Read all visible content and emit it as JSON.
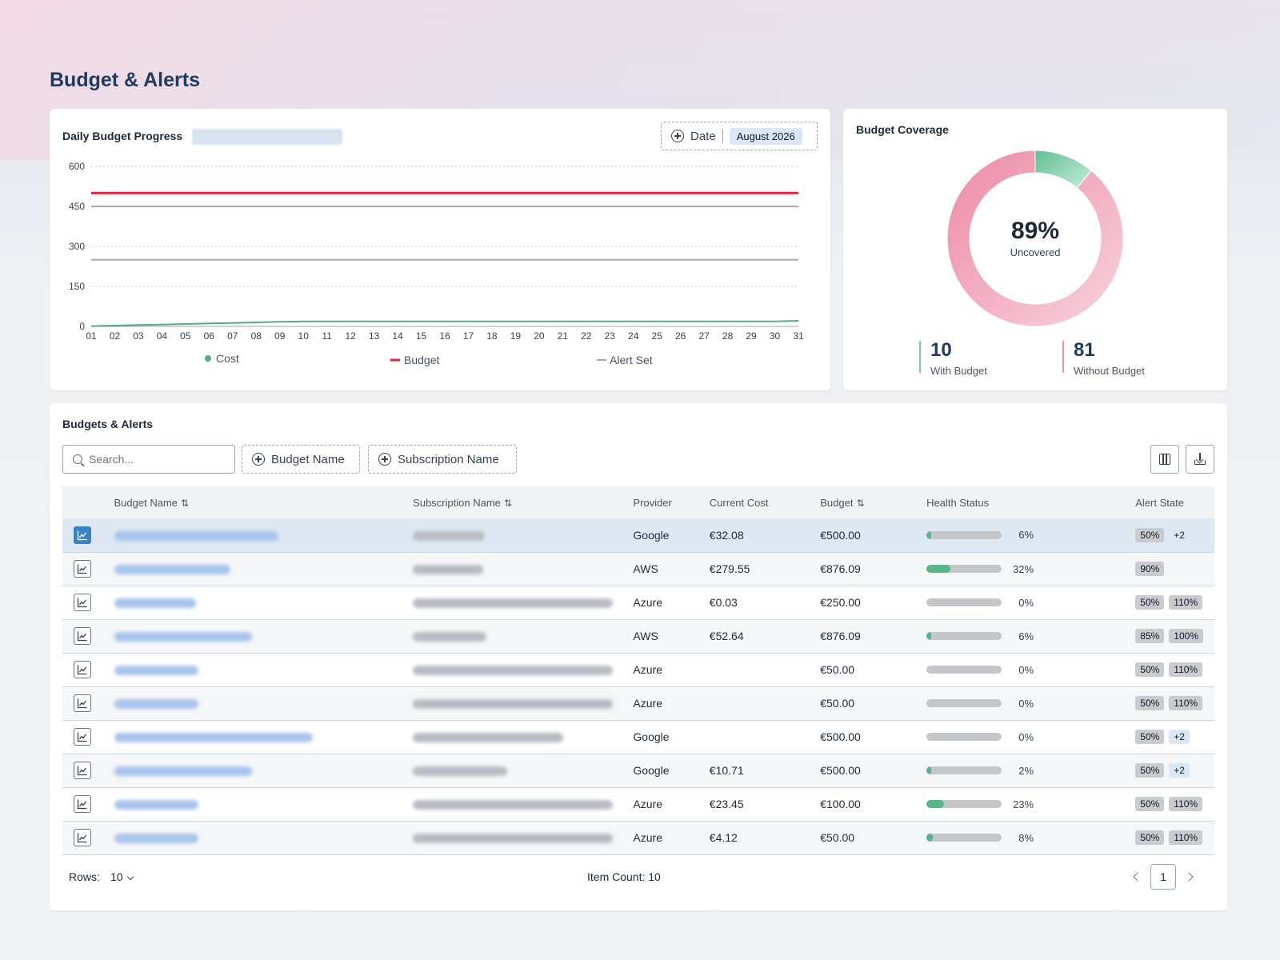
{
  "page": {
    "title": "Budget & Alerts"
  },
  "daily_progress": {
    "title": "Daily Budget Progress",
    "date_filter": {
      "label": "Date",
      "value": "August 2026"
    },
    "legend": {
      "cost": "Cost",
      "budget": "Budget",
      "alert": "Alert Set"
    },
    "colors": {
      "cost": "#4fae85",
      "budget": "#e0223a",
      "alert": "#a8a8a8"
    }
  },
  "chart_data": {
    "type": "line",
    "x": [
      "01",
      "02",
      "03",
      "04",
      "05",
      "06",
      "07",
      "08",
      "09",
      "10",
      "11",
      "12",
      "13",
      "14",
      "15",
      "16",
      "17",
      "18",
      "19",
      "20",
      "21",
      "22",
      "23",
      "24",
      "25",
      "26",
      "27",
      "28",
      "29",
      "30",
      "31"
    ],
    "yticks": [
      "600",
      "450",
      "300",
      "150",
      "0"
    ],
    "ylim": [
      0,
      600
    ],
    "series": [
      {
        "name": "Cost",
        "values": [
          1,
          3,
          5,
          7,
          9,
          11,
          13,
          15,
          17,
          19,
          19,
          19,
          19,
          19,
          19,
          19,
          19,
          19,
          19,
          19,
          19,
          19,
          19,
          19,
          19,
          19,
          19,
          19,
          19,
          19,
          21
        ]
      },
      {
        "name": "Budget",
        "values": [
          500,
          500,
          500,
          500,
          500,
          500,
          500,
          500,
          500,
          500,
          500,
          500,
          500,
          500,
          500,
          500,
          500,
          500,
          500,
          500,
          500,
          500,
          500,
          500,
          500,
          500,
          500,
          500,
          500,
          500,
          500
        ]
      },
      {
        "name": "Alert Set",
        "values": [
          450,
          450,
          450,
          450,
          450,
          450,
          450,
          450,
          450,
          450,
          450,
          450,
          450,
          450,
          450,
          450,
          450,
          450,
          450,
          450,
          450,
          450,
          450,
          450,
          450,
          450,
          450,
          450,
          450,
          450,
          450
        ]
      },
      {
        "name": "Alert Set",
        "values": [
          250,
          250,
          250,
          250,
          250,
          250,
          250,
          250,
          250,
          250,
          250,
          250,
          250,
          250,
          250,
          250,
          250,
          250,
          250,
          250,
          250,
          250,
          250,
          250,
          250,
          250,
          250,
          250,
          250,
          250,
          250
        ]
      }
    ],
    "grid": true,
    "legend": "bottom"
  },
  "coverage": {
    "title": "Budget Coverage",
    "percent": "89%",
    "sub": "Uncovered",
    "covered_fraction": 0.11,
    "with": {
      "count": "10",
      "label": "With Budget"
    },
    "without": {
      "count": "81",
      "label": "Without Budget"
    }
  },
  "table": {
    "title": "Budgets & Alerts",
    "search_placeholder": "Search...",
    "filters": [
      "Budget Name",
      "Subscription Name"
    ],
    "columns": [
      "Budget Name",
      "Subscription Name",
      "Provider",
      "Current Cost",
      "Budget",
      "Health Status",
      "Alert State"
    ],
    "rows": [
      {
        "provider": "Google",
        "cost": "€32.08",
        "budget": "€500.00",
        "health": 6,
        "health_label": "6%",
        "alerts": [
          "50%"
        ],
        "more": "+2",
        "more_blue": false
      },
      {
        "provider": "AWS",
        "cost": "€279.55",
        "budget": "€876.09",
        "health": 32,
        "health_label": "32%",
        "alerts": [
          "90%"
        ],
        "more": "",
        "more_blue": false
      },
      {
        "provider": "Azure",
        "cost": "€0.03",
        "budget": "€250.00",
        "health": 0,
        "health_label": "0%",
        "alerts": [
          "50%",
          "110%"
        ],
        "more": "",
        "more_blue": false
      },
      {
        "provider": "AWS",
        "cost": "€52.64",
        "budget": "€876.09",
        "health": 6,
        "health_label": "6%",
        "alerts": [
          "85%",
          "100%"
        ],
        "more": "",
        "more_blue": false
      },
      {
        "provider": "Azure",
        "cost": "",
        "budget": "€50.00",
        "health": 0,
        "health_label": "0%",
        "alerts": [
          "50%",
          "110%"
        ],
        "more": "",
        "more_blue": false
      },
      {
        "provider": "Azure",
        "cost": "",
        "budget": "€50.00",
        "health": 0,
        "health_label": "0%",
        "alerts": [
          "50%",
          "110%"
        ],
        "more": "",
        "more_blue": false
      },
      {
        "provider": "Google",
        "cost": "",
        "budget": "€500.00",
        "health": 0,
        "health_label": "0%",
        "alerts": [
          "50%"
        ],
        "more": "+2",
        "more_blue": true
      },
      {
        "provider": "Google",
        "cost": "€10.71",
        "budget": "€500.00",
        "health": 2,
        "health_label": "2%",
        "alerts": [
          "50%"
        ],
        "more": "+2",
        "more_blue": true
      },
      {
        "provider": "Azure",
        "cost": "€23.45",
        "budget": "€100.00",
        "health": 23,
        "health_label": "23%",
        "alerts": [
          "50%",
          "110%"
        ],
        "more": "",
        "more_blue": false
      },
      {
        "provider": "Azure",
        "cost": "€4.12",
        "budget": "€50.00",
        "health": 8,
        "health_label": "8%",
        "alerts": [
          "50%",
          "110%"
        ],
        "more": "",
        "more_blue": false
      }
    ],
    "footer": {
      "rows_label": "Rows:",
      "rows_value": "10",
      "item_count": "Item Count: 10",
      "page": "1"
    }
  }
}
